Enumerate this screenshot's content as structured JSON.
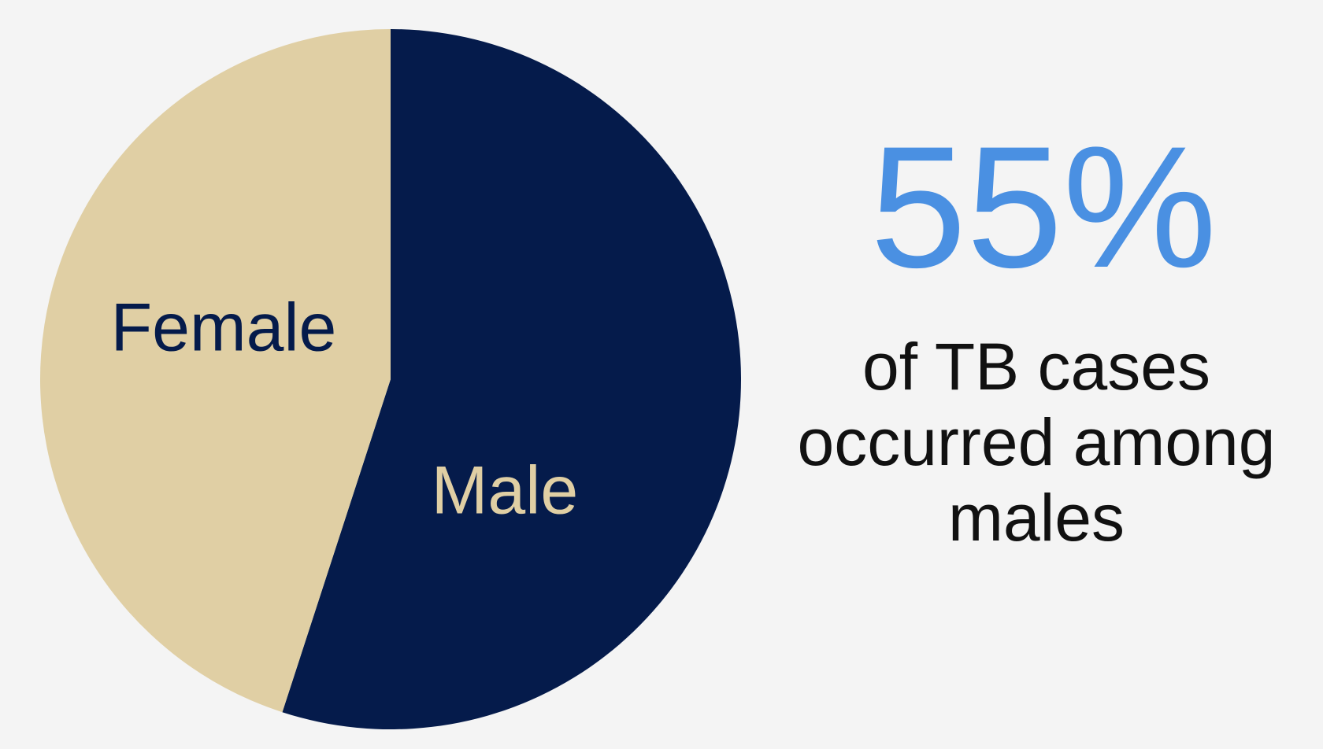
{
  "chart_data": {
    "type": "pie",
    "categories": [
      "Male",
      "Female"
    ],
    "values": [
      55,
      45
    ],
    "value_labels": [
      "55%",
      null
    ],
    "colors": [
      "#051b4b",
      "#e0cfa4"
    ],
    "label_colors": [
      "#e0cfa4",
      "#051b4b"
    ],
    "headline_color": "#4a90e2",
    "annotation": "of TB cases occurred among males"
  }
}
